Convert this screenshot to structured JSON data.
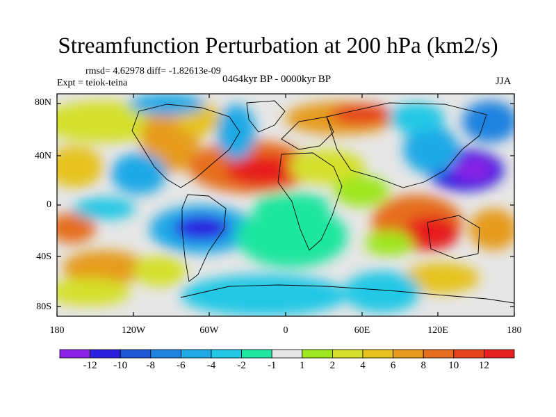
{
  "title": "Streamfunction Perturbation at 200 hPa (km2/s)",
  "stats": "rmsd= 4.62978 diff= -1.82613e-09",
  "expt": "Expt = teiok-teina",
  "period": "0464kyr BP - 0000kyr BP",
  "season": "JJA",
  "lat_labels": [
    "80N",
    "40N",
    "0",
    "40S",
    "80S"
  ],
  "lon_labels": [
    "180",
    "120W",
    "60W",
    "0",
    "60E",
    "120E",
    "180"
  ],
  "colorbar": {
    "labels": [
      "-12",
      "-10",
      "-8",
      "-6",
      "-4",
      "-2",
      "-1",
      "1",
      "2",
      "4",
      "6",
      "8",
      "10",
      "12"
    ],
    "colors": [
      "#8b21e6",
      "#2b1fe0",
      "#1f57d9",
      "#1e82e0",
      "#1fa9e6",
      "#22c8e6",
      "#1fe6a0",
      "#e6e6e6",
      "#9ee61f",
      "#d4e02a",
      "#e6c21f",
      "#e69b1f",
      "#e66e1f",
      "#e6431f",
      "#e61f1f"
    ]
  }
}
